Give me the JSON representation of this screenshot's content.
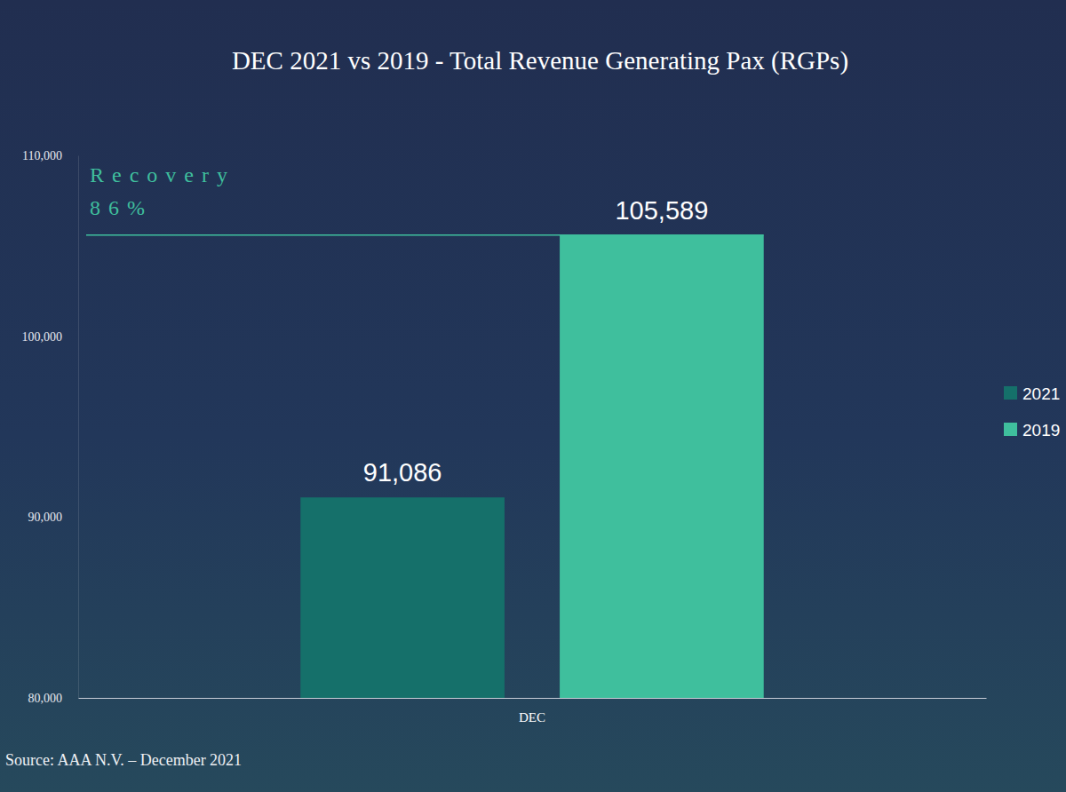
{
  "chart_data": {
    "type": "bar",
    "title": "DEC 2021 vs 2019 - Total Revenue Generating Pax (RGPs)",
    "categories": [
      "DEC"
    ],
    "series": [
      {
        "name": "2021",
        "color": "#15706a",
        "values": [
          91086
        ],
        "value_labels": [
          "91,086"
        ]
      },
      {
        "name": "2019",
        "color": "#3fbf9d",
        "values": [
          105589
        ],
        "value_labels": [
          "105,589"
        ]
      }
    ],
    "ylim": [
      80000,
      110000
    ],
    "yticks": [
      {
        "value": 80000,
        "label": "80,000"
      },
      {
        "value": 90000,
        "label": "90,000"
      },
      {
        "value": 100000,
        "label": "100,000"
      },
      {
        "value": 110000,
        "label": "110,000"
      }
    ],
    "grid": false,
    "legend": "right",
    "data_labels": true,
    "annotations": [
      "Recovery",
      "86%"
    ],
    "source": "Source: AAA N.V. – December 2021"
  }
}
